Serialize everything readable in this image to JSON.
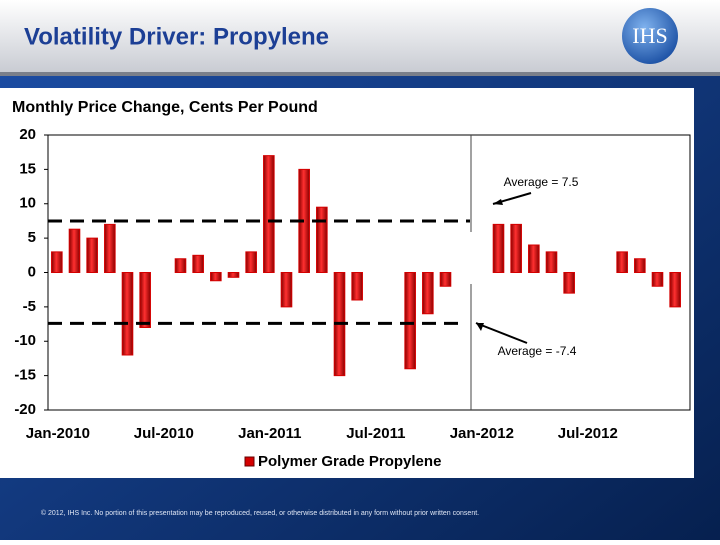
{
  "header": {
    "title": "Volatility Driver: Propylene",
    "logo": "IHS"
  },
  "chart_data": {
    "type": "bar",
    "title": "Monthly Price Change, Cents Per Pound",
    "categories": [
      "Jan-2010",
      null,
      null,
      null,
      null,
      null,
      "Jul-2010",
      null,
      null,
      null,
      null,
      null,
      "Jan-2011",
      null,
      null,
      null,
      null,
      null,
      "Jul-2011",
      null,
      null,
      null,
      null,
      null,
      "Jan-2012",
      null,
      null,
      null,
      null,
      null,
      "Jul-2012",
      null,
      null,
      null,
      null,
      null
    ],
    "series": [
      {
        "name": "Polymer Grade Propylene",
        "color": "#d40000",
        "values": [
          3,
          6.3,
          5,
          7,
          -12,
          -8,
          0,
          2,
          2.5,
          -1.2,
          -0.7,
          3,
          17,
          -5,
          15,
          9.5,
          -15,
          -4,
          0,
          0,
          -14,
          -6,
          -2,
          0,
          0,
          7,
          7,
          4,
          3,
          -3,
          0,
          0,
          3,
          2,
          -2,
          -5
        ]
      }
    ],
    "ylim": [
      -20,
      20
    ],
    "yticks": [
      -20,
      -15,
      -10,
      -5,
      0,
      5,
      10,
      15,
      20
    ],
    "grid": false,
    "averages": [
      {
        "value": 7.5,
        "label": "Average = 7.5"
      },
      {
        "value": -7.4,
        "label": "Average = -7.4"
      }
    ]
  },
  "footer": {
    "text": "© 2012, IHS Inc. No portion of this presentation may be reproduced, reused, or otherwise distributed in any form without prior written consent."
  }
}
